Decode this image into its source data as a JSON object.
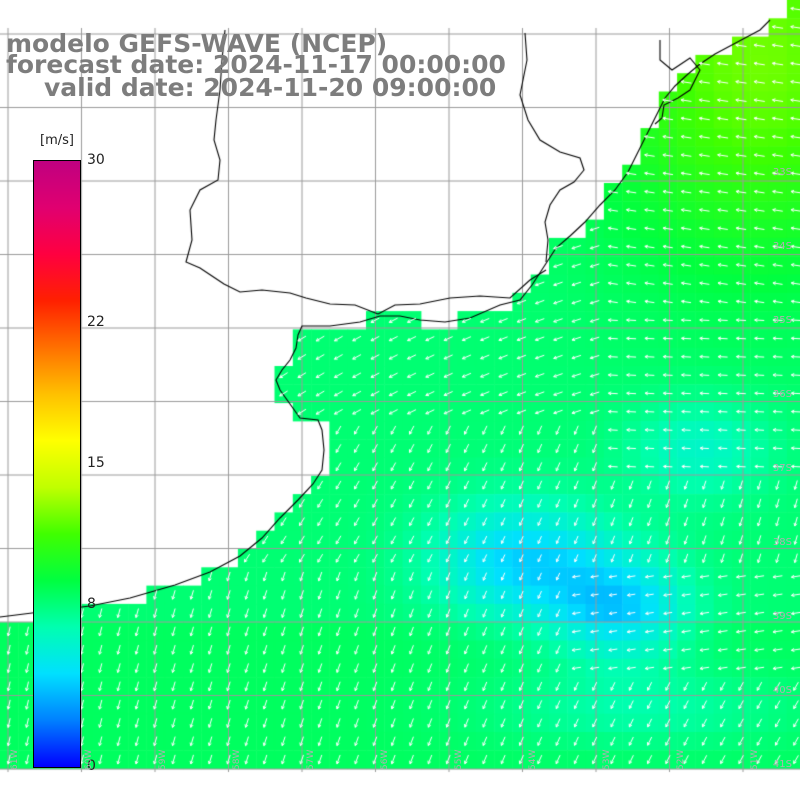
{
  "title": {
    "model": "modelo GEFS-WAVE (NCEP)",
    "forecast": "forecast date: 2024-11-17 00:00:00",
    "valid": "valid date: 2024-11-20 09:00:00"
  },
  "colorbar": {
    "unit": "[m/s]",
    "ticks": [
      "30",
      "22",
      "15",
      "8",
      "0"
    ],
    "tick_values": [
      30,
      22,
      15,
      8,
      0
    ],
    "min": 0,
    "max": 30,
    "colors": [
      "#0000ff",
      "#0080ff",
      "#00e0ff",
      "#00ffb0",
      "#00ff40",
      "#40ff00",
      "#c0ff00",
      "#ffff00",
      "#ffc000",
      "#ff7000",
      "#ff2000",
      "#ff0040",
      "#e00070",
      "#c00080"
    ]
  },
  "map": {
    "lat_labels": [
      "33S",
      "34S",
      "35S",
      "36S",
      "37S",
      "38S",
      "39S",
      "40S",
      "41S"
    ],
    "lon_labels": [
      "61W",
      "60W",
      "59W",
      "58W",
      "57W",
      "56W",
      "55W",
      "54W",
      "53W",
      "52W",
      "51W"
    ],
    "land_color": "#ffffff",
    "coast_color": "#000000",
    "grid_color": "#9a9a9a",
    "arrow_color": "#ffffff",
    "wind_speed_range_shown_ms": [
      4,
      11
    ]
  }
}
